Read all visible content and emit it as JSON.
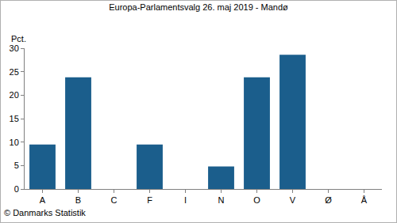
{
  "chart_data": {
    "type": "bar",
    "title": "Europa-Parlamentsvalg 26. maj 2019 - Mandø",
    "y_label": "Pct.",
    "annotations": [
      "© Danmarks Statistik"
    ],
    "categories": [
      "A",
      "B",
      "C",
      "F",
      "I",
      "N",
      "O",
      "V",
      "Ø",
      "Å"
    ],
    "values": [
      9.5,
      23.8,
      0,
      9.5,
      0,
      4.8,
      23.8,
      28.6,
      0,
      0
    ],
    "color": "#1b5e8c",
    "ylim": [
      0,
      30
    ],
    "yticks": [
      0,
      5,
      10,
      15,
      20,
      25,
      30
    ],
    "grid": false
  }
}
